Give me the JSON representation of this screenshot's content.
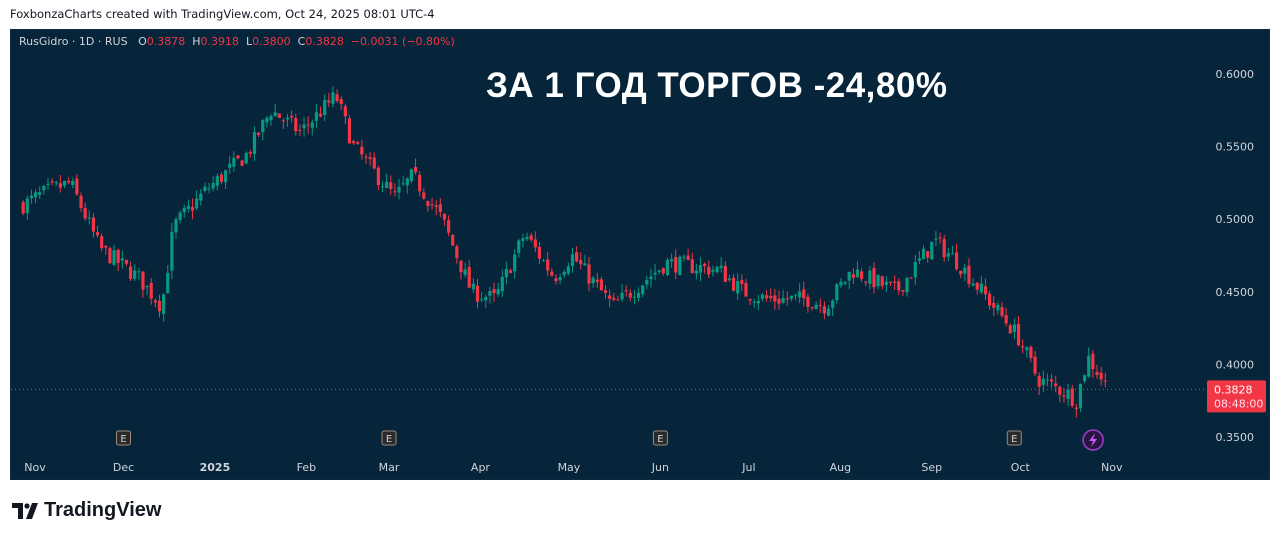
{
  "credit": "FoxbonzaCharts created with TradingView.com, Oct 24, 2025 08:01 UTC-4",
  "legend": {
    "symbol": "RusGidro · 1D · RUS",
    "o_label": "O",
    "o": "0.3878",
    "h_label": "H",
    "h": "0.3918",
    "l_label": "L",
    "l": "0.3800",
    "c_label": "C",
    "c": "0.3828",
    "change": "−0.0031 (−0.80%)"
  },
  "headline": "ЗА 1 ГОД ТОРГОВ -24,80%",
  "brand": "TradingView",
  "price_label": {
    "price": "0.3828",
    "countdown": "08:48:00"
  },
  "colors": {
    "up": "#089981",
    "down": "#f23645",
    "bg": "#06243a"
  },
  "chart_data": {
    "type": "candlestick",
    "yticks": [
      "0.6000",
      "0.5500",
      "0.5000",
      "0.4500",
      "0.4000",
      "0.3500"
    ],
    "ytick_values": [
      0.6,
      0.55,
      0.5,
      0.45,
      0.4,
      0.35
    ],
    "ylim": [
      0.332,
      0.612
    ],
    "xticks": [
      "Nov",
      "Dec",
      "2025",
      "Feb",
      "Mar",
      "Apr",
      "May",
      "Jun",
      "Jul",
      "Aug",
      "Sep",
      "Oct",
      "Nov"
    ],
    "xtick_days": [
      0,
      30,
      61,
      92,
      120,
      151,
      181,
      212,
      242,
      273,
      304,
      334,
      365
    ],
    "earnings_days": [
      30,
      120,
      212,
      334
    ],
    "earnings_label": "E",
    "last_price": 0.3828,
    "approx_close_path": [
      [
        -4,
        0.51
      ],
      [
        5,
        0.52
      ],
      [
        12,
        0.525
      ],
      [
        22,
        0.48
      ],
      [
        35,
        0.46
      ],
      [
        43,
        0.44
      ],
      [
        47,
        0.495
      ],
      [
        58,
        0.52
      ],
      [
        72,
        0.545
      ],
      [
        80,
        0.575
      ],
      [
        90,
        0.56
      ],
      [
        102,
        0.585
      ],
      [
        108,
        0.55
      ],
      [
        122,
        0.515
      ],
      [
        128,
        0.53
      ],
      [
        138,
        0.5
      ],
      [
        148,
        0.45
      ],
      [
        156,
        0.445
      ],
      [
        166,
        0.49
      ],
      [
        176,
        0.46
      ],
      [
        182,
        0.475
      ],
      [
        196,
        0.44
      ],
      [
        214,
        0.47
      ],
      [
        232,
        0.465
      ],
      [
        240,
        0.45
      ],
      [
        248,
        0.445
      ],
      [
        262,
        0.445
      ],
      [
        268,
        0.44
      ],
      [
        277,
        0.465
      ],
      [
        292,
        0.45
      ],
      [
        305,
        0.485
      ],
      [
        313,
        0.47
      ],
      [
        323,
        0.445
      ],
      [
        333,
        0.42
      ],
      [
        340,
        0.39
      ],
      [
        350,
        0.38
      ],
      [
        353,
        0.375
      ],
      [
        357,
        0.405
      ],
      [
        364,
        0.3828
      ]
    ]
  }
}
